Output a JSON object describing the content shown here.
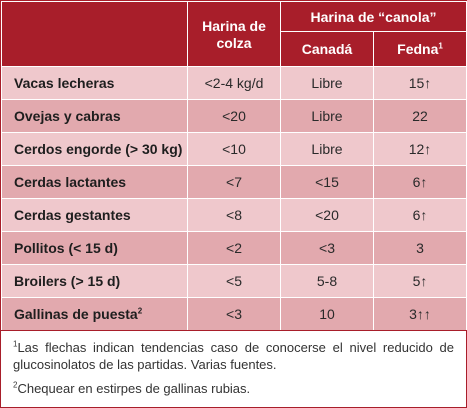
{
  "table": {
    "header": {
      "col_colza": "Harina de colza",
      "group_canola": "Harina de “canola”",
      "col_canada": "Canadá",
      "col_fedna": "Fedna",
      "col_fedna_sup": "1"
    },
    "rows": [
      {
        "label": "Vacas lecheras",
        "label_sup": "",
        "colza": "<2-4 kg/d",
        "canada": "Libre",
        "fedna": "15↑"
      },
      {
        "label": "Ovejas y cabras",
        "label_sup": "",
        "colza": "<20",
        "canada": "Libre",
        "fedna": "22"
      },
      {
        "label": "Cerdos engorde (> 30 kg)",
        "label_sup": "",
        "colza": "<10",
        "canada": "Libre",
        "fedna": "12↑"
      },
      {
        "label": "Cerdas lactantes",
        "label_sup": "",
        "colza": "<7",
        "canada": "<15",
        "fedna": "6↑"
      },
      {
        "label": "Cerdas gestantes",
        "label_sup": "",
        "colza": "<8",
        "canada": "<20",
        "fedna": "6↑"
      },
      {
        "label": "Pollitos (< 15 d)",
        "label_sup": "",
        "colza": "<2",
        "canada": "<3",
        "fedna": "3"
      },
      {
        "label": "Broilers (> 15 d)",
        "label_sup": "",
        "colza": "<5",
        "canada": "5-8",
        "fedna": "5↑"
      },
      {
        "label": "Gallinas de puesta",
        "label_sup": "2",
        "colza": "<3",
        "canada": "10",
        "fedna": "3↑↑"
      }
    ]
  },
  "notes": {
    "n1_sup": "1",
    "n1": "Las flechas indican tendencias caso de conocerse el nivel reducido de glucosinolatos de las partidas. Varias fuentes.",
    "n2_sup": "2",
    "n2": "Chequear en estirpes de gallinas rubias."
  },
  "colors": {
    "header_bg": "#a81e2a",
    "row_light": "#efc8cc",
    "row_dark": "#e2a9ae"
  }
}
